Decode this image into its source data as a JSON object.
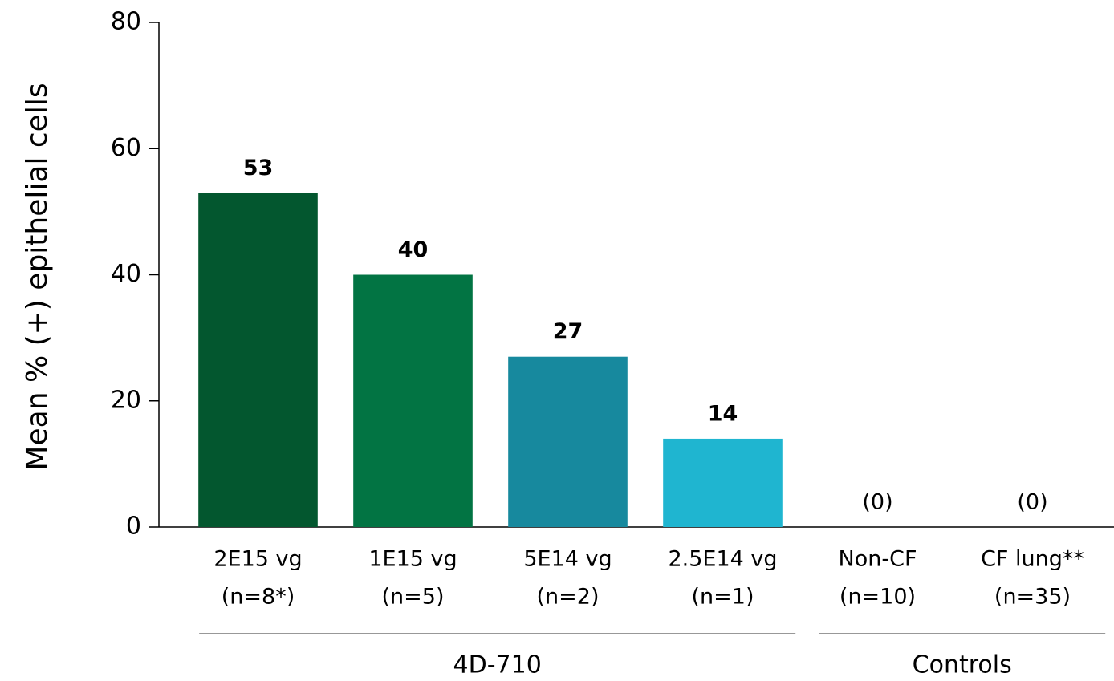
{
  "chart_data": {
    "type": "bar",
    "ylabel": "Mean % (+) epithelial cells",
    "categories": [
      "2E15 vg",
      "1E15 vg",
      "5E14 vg",
      "2.5E14 vg",
      "Non-CF",
      "CF lung**"
    ],
    "category_n": [
      "(n=8*)",
      "(n=5)",
      "(n=2)",
      "(n=1)",
      "(n=10)",
      "(n=35)"
    ],
    "category_groups": [
      "4D-710",
      "4D-710",
      "4D-710",
      "4D-710",
      "Controls",
      "Controls"
    ],
    "values": [
      53,
      40,
      27,
      14,
      0,
      0
    ],
    "value_labels": [
      "53",
      "40",
      "27",
      "14",
      "(0)",
      "(0)"
    ],
    "colors": [
      "#03572f",
      "#027443",
      "#17899e",
      "#1fb5d0",
      "#1fb5d0",
      "#1fb5d0"
    ],
    "label_colors": [
      "#03673a",
      "#027443",
      "#17899e",
      "#1fb5d0",
      "#000000",
      "#000000"
    ],
    "ylim": [
      0,
      80
    ],
    "yticks": [
      0,
      20,
      40,
      60,
      80
    ],
    "grid": false
  }
}
